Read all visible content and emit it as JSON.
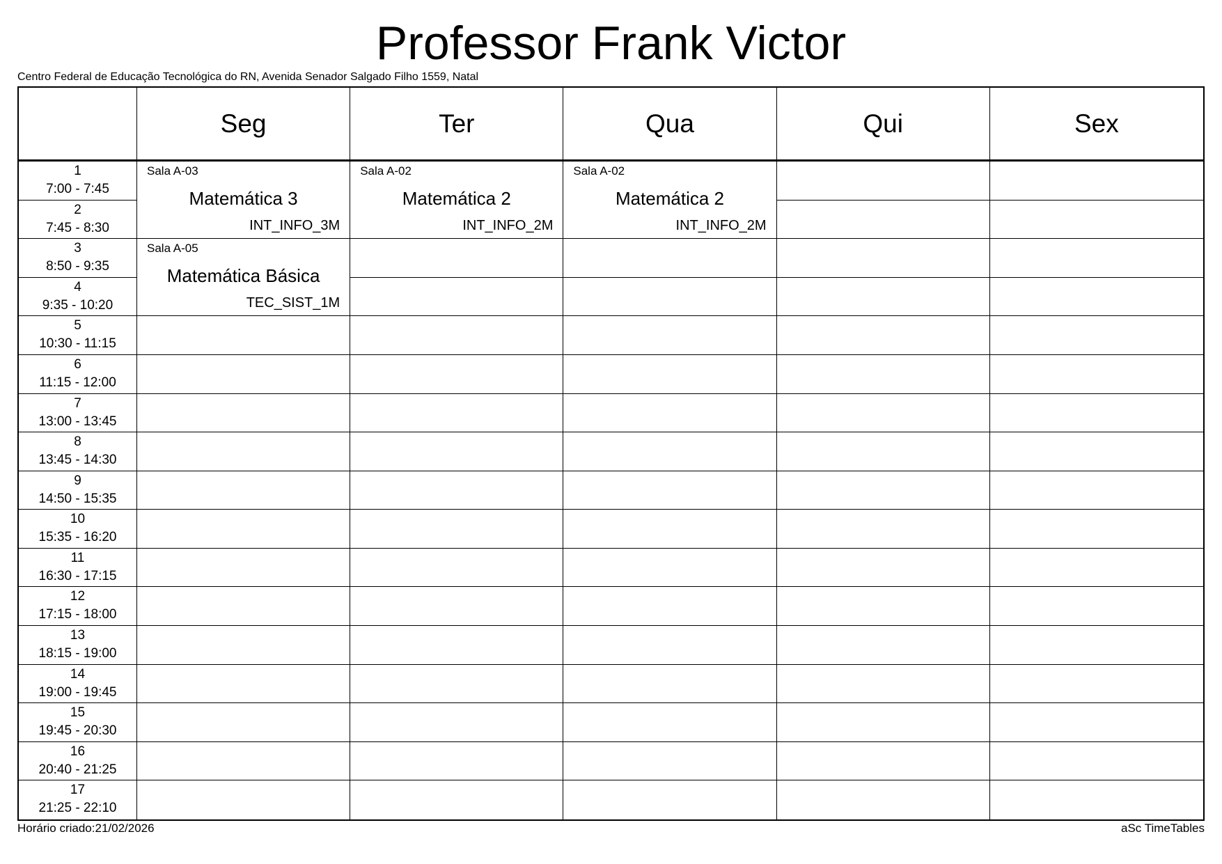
{
  "title": "Professor Frank Victor",
  "subtitle": "Centro Federal de Educação Tecnológica do RN, Avenida Senador Salgado Filho 1559, Natal",
  "days": [
    "Seg",
    "Ter",
    "Qua",
    "Qui",
    "Sex"
  ],
  "periods": [
    {
      "num": "1",
      "time": "7:00 - 7:45"
    },
    {
      "num": "2",
      "time": "7:45 - 8:30"
    },
    {
      "num": "3",
      "time": "8:50 - 9:35"
    },
    {
      "num": "4",
      "time": "9:35 - 10:20"
    },
    {
      "num": "5",
      "time": "10:30 - 11:15"
    },
    {
      "num": "6",
      "time": "11:15 - 12:00"
    },
    {
      "num": "7",
      "time": "13:00 - 13:45"
    },
    {
      "num": "8",
      "time": "13:45 - 14:30"
    },
    {
      "num": "9",
      "time": "14:50 - 15:35"
    },
    {
      "num": "10",
      "time": "15:35 - 16:20"
    },
    {
      "num": "11",
      "time": "16:30 - 17:15"
    },
    {
      "num": "12",
      "time": "17:15 - 18:00"
    },
    {
      "num": "13",
      "time": "18:15 - 19:00"
    },
    {
      "num": "14",
      "time": "19:00 - 19:45"
    },
    {
      "num": "15",
      "time": "19:45 - 20:30"
    },
    {
      "num": "16",
      "time": "20:40 - 21:25"
    },
    {
      "num": "17",
      "time": "21:25 - 22:10"
    }
  ],
  "lessons": [
    {
      "day": 0,
      "start": 1,
      "span": 2,
      "room": "Sala A-03",
      "subject": "Matemática 3",
      "class": "INT_INFO_3M"
    },
    {
      "day": 0,
      "start": 3,
      "span": 2,
      "room": "Sala A-05",
      "subject": "Matemática Básica",
      "class": "TEC_SIST_1M"
    },
    {
      "day": 1,
      "start": 1,
      "span": 2,
      "room": "Sala A-02",
      "subject": "Matemática 2",
      "class": "INT_INFO_2M"
    },
    {
      "day": 2,
      "start": 1,
      "span": 2,
      "room": "Sala A-02",
      "subject": "Matemática 2",
      "class": "INT_INFO_2M"
    }
  ],
  "footer": {
    "created": "Horário criado:21/02/2026",
    "brand": "aSc TimeTables"
  }
}
